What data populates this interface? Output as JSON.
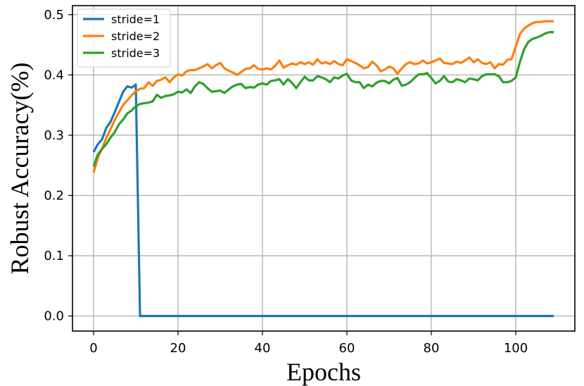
{
  "chart_data": {
    "type": "line",
    "title": "",
    "xlabel": "Epochs",
    "ylabel": "Robust Accuracy(%)",
    "xlim": [
      -5,
      114
    ],
    "ylim": [
      -0.025,
      0.515
    ],
    "xticks": [
      0,
      20,
      40,
      60,
      80,
      100
    ],
    "xtick_labels": [
      "0",
      "20",
      "40",
      "60",
      "80",
      "100"
    ],
    "yticks": [
      0.0,
      0.1,
      0.2,
      0.3,
      0.4,
      0.5
    ],
    "ytick_labels": [
      "0.0",
      "0.1",
      "0.2",
      "0.3",
      "0.4",
      "0.5"
    ],
    "grid": true,
    "legend_position": "top-left",
    "series": [
      {
        "name": "stride=1",
        "color": "#1f77b4",
        "x": [
          0,
          1,
          2,
          3,
          4,
          5,
          6,
          7,
          8,
          9,
          10,
          11,
          109
        ],
        "y": [
          0.272,
          0.285,
          0.293,
          0.312,
          0.322,
          0.338,
          0.355,
          0.372,
          0.381,
          0.379,
          0.384,
          0.0,
          0.0
        ]
      },
      {
        "name": "stride=2",
        "color": "#ff7f0e",
        "x": [
          0,
          1,
          2,
          3,
          4,
          5,
          6,
          7,
          8,
          9,
          10,
          11,
          12,
          13,
          14,
          15,
          16,
          17,
          18,
          19,
          20,
          21,
          22,
          23,
          24,
          25,
          26,
          27,
          28,
          29,
          30,
          31,
          32,
          33,
          34,
          35,
          36,
          37,
          38,
          39,
          40,
          41,
          42,
          43,
          44,
          45,
          46,
          47,
          48,
          49,
          50,
          51,
          52,
          53,
          54,
          55,
          56,
          57,
          58,
          59,
          60,
          61,
          62,
          63,
          64,
          65,
          66,
          67,
          68,
          69,
          70,
          71,
          72,
          73,
          74,
          75,
          76,
          77,
          78,
          79,
          80,
          81,
          82,
          83,
          84,
          85,
          86,
          87,
          88,
          89,
          90,
          91,
          92,
          93,
          94,
          95,
          96,
          97,
          98,
          99,
          100,
          101,
          102,
          103,
          104,
          105,
          106,
          107,
          108,
          109
        ],
        "y": [
          0.238,
          0.262,
          0.278,
          0.295,
          0.31,
          0.325,
          0.338,
          0.35,
          0.358,
          0.366,
          0.373,
          0.377,
          0.378,
          0.388,
          0.382,
          0.39,
          0.392,
          0.396,
          0.388,
          0.396,
          0.401,
          0.399,
          0.406,
          0.408,
          0.408,
          0.411,
          0.414,
          0.418,
          0.411,
          0.416,
          0.42,
          0.411,
          0.407,
          0.404,
          0.4,
          0.405,
          0.41,
          0.411,
          0.416,
          0.41,
          0.409,
          0.411,
          0.409,
          0.415,
          0.424,
          0.412,
          0.416,
          0.419,
          0.417,
          0.421,
          0.418,
          0.421,
          0.417,
          0.426,
          0.419,
          0.421,
          0.418,
          0.423,
          0.418,
          0.416,
          0.426,
          0.423,
          0.42,
          0.416,
          0.411,
          0.413,
          0.422,
          0.416,
          0.406,
          0.409,
          0.414,
          0.411,
          0.402,
          0.411,
          0.418,
          0.421,
          0.418,
          0.419,
          0.424,
          0.419,
          0.421,
          0.424,
          0.427,
          0.42,
          0.419,
          0.418,
          0.422,
          0.42,
          0.424,
          0.429,
          0.421,
          0.426,
          0.42,
          0.418,
          0.421,
          0.411,
          0.418,
          0.417,
          0.425,
          0.426,
          0.447,
          0.468,
          0.477,
          0.482,
          0.486,
          0.488,
          0.488,
          0.489,
          0.489,
          0.489
        ]
      },
      {
        "name": "stride=3",
        "color": "#2ca02c",
        "x": [
          0,
          1,
          2,
          3,
          4,
          5,
          6,
          7,
          8,
          9,
          10,
          11,
          12,
          13,
          14,
          15,
          16,
          17,
          18,
          19,
          20,
          21,
          22,
          23,
          24,
          25,
          26,
          27,
          28,
          29,
          30,
          31,
          32,
          33,
          34,
          35,
          36,
          37,
          38,
          39,
          40,
          41,
          42,
          43,
          44,
          45,
          46,
          47,
          48,
          49,
          50,
          51,
          52,
          53,
          54,
          55,
          56,
          57,
          58,
          59,
          60,
          61,
          62,
          63,
          64,
          65,
          66,
          67,
          68,
          69,
          70,
          71,
          72,
          73,
          74,
          75,
          76,
          77,
          78,
          79,
          80,
          81,
          82,
          83,
          84,
          85,
          86,
          87,
          88,
          89,
          90,
          91,
          92,
          93,
          94,
          95,
          96,
          97,
          98,
          99,
          100,
          101,
          102,
          103,
          104,
          105,
          106,
          107,
          108,
          109
        ],
        "y": [
          0.248,
          0.268,
          0.277,
          0.285,
          0.296,
          0.305,
          0.318,
          0.326,
          0.336,
          0.341,
          0.348,
          0.352,
          0.353,
          0.354,
          0.356,
          0.367,
          0.362,
          0.365,
          0.366,
          0.368,
          0.372,
          0.371,
          0.376,
          0.37,
          0.381,
          0.388,
          0.385,
          0.378,
          0.372,
          0.373,
          0.374,
          0.37,
          0.376,
          0.381,
          0.384,
          0.385,
          0.378,
          0.38,
          0.379,
          0.384,
          0.386,
          0.384,
          0.39,
          0.391,
          0.393,
          0.384,
          0.393,
          0.387,
          0.378,
          0.388,
          0.397,
          0.391,
          0.391,
          0.398,
          0.396,
          0.393,
          0.388,
          0.396,
          0.394,
          0.399,
          0.402,
          0.391,
          0.388,
          0.388,
          0.378,
          0.384,
          0.381,
          0.387,
          0.39,
          0.39,
          0.386,
          0.392,
          0.395,
          0.382,
          0.384,
          0.388,
          0.395,
          0.401,
          0.401,
          0.403,
          0.395,
          0.386,
          0.39,
          0.398,
          0.389,
          0.388,
          0.393,
          0.391,
          0.388,
          0.394,
          0.393,
          0.391,
          0.398,
          0.401,
          0.401,
          0.401,
          0.398,
          0.388,
          0.388,
          0.39,
          0.396,
          0.422,
          0.443,
          0.455,
          0.46,
          0.462,
          0.465,
          0.469,
          0.471,
          0.471
        ]
      }
    ]
  }
}
